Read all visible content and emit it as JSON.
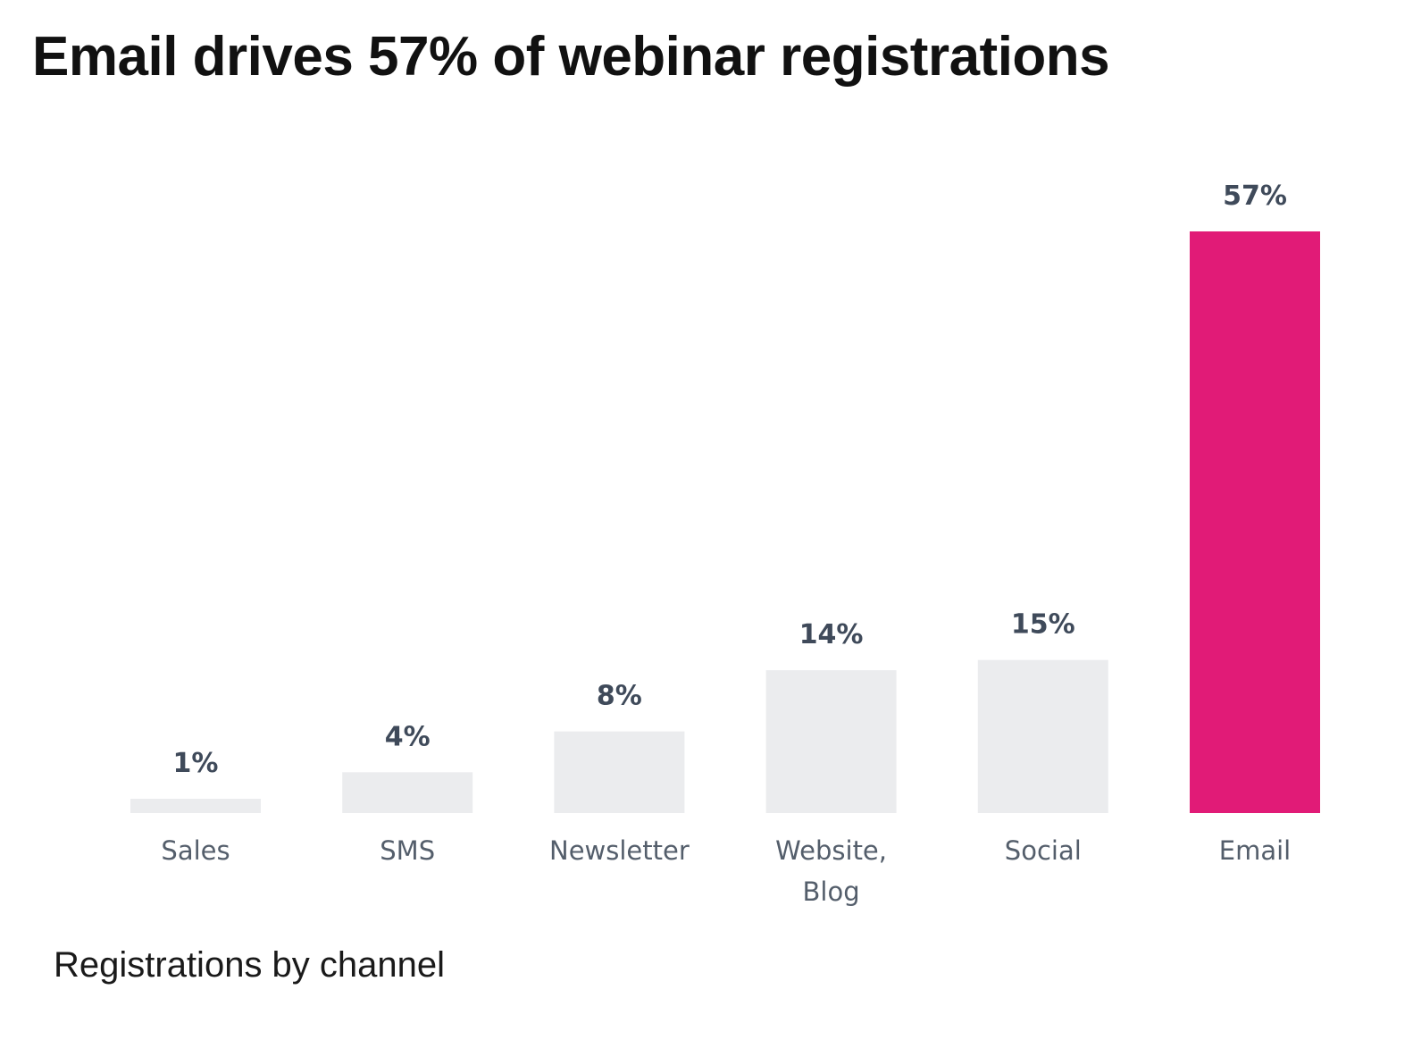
{
  "chart_data": {
    "type": "bar",
    "title": "Email drives 57% of webinar registrations",
    "caption": "Registrations by channel",
    "categories": [
      "Sales",
      "SMS",
      "Newsletter",
      "Website, Blog",
      "Social",
      "Email"
    ],
    "category_lines": [
      [
        "Sales"
      ],
      [
        "SMS"
      ],
      [
        "Newsletter"
      ],
      [
        "Website,",
        "Blog"
      ],
      [
        "Social"
      ],
      [
        "Email"
      ]
    ],
    "values": [
      1,
      4,
      8,
      14,
      15,
      57
    ],
    "data_labels": [
      "1%",
      "4%",
      "8%",
      "14%",
      "15%",
      "57%"
    ],
    "unit": "%",
    "ylim": [
      0,
      57
    ],
    "grid": false,
    "xlabel": "",
    "ylabel": "",
    "colors": {
      "default": "#ebecee",
      "highlight": "#e11b77",
      "highlight_category": "Email",
      "data_label": "#3f4a5a",
      "category_label": "#545e6b"
    }
  }
}
